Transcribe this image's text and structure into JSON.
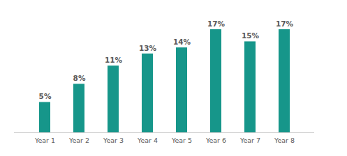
{
  "chart_data": {
    "type": "bar",
    "categories": [
      "Year 1",
      "Year 2",
      "Year 3",
      "Year 4",
      "Year 5",
      "Year 6",
      "Year 7",
      "Year 8"
    ],
    "values": [
      5,
      8,
      11,
      13,
      14,
      17,
      15,
      17
    ],
    "value_labels": [
      "5%",
      "8%",
      "11%",
      "13%",
      "14%",
      "17%",
      "15%",
      "17%"
    ],
    "color": "#16968a",
    "ylim": [
      0,
      17
    ],
    "data_labels": true,
    "tick_labels": "x",
    "grid": false
  }
}
